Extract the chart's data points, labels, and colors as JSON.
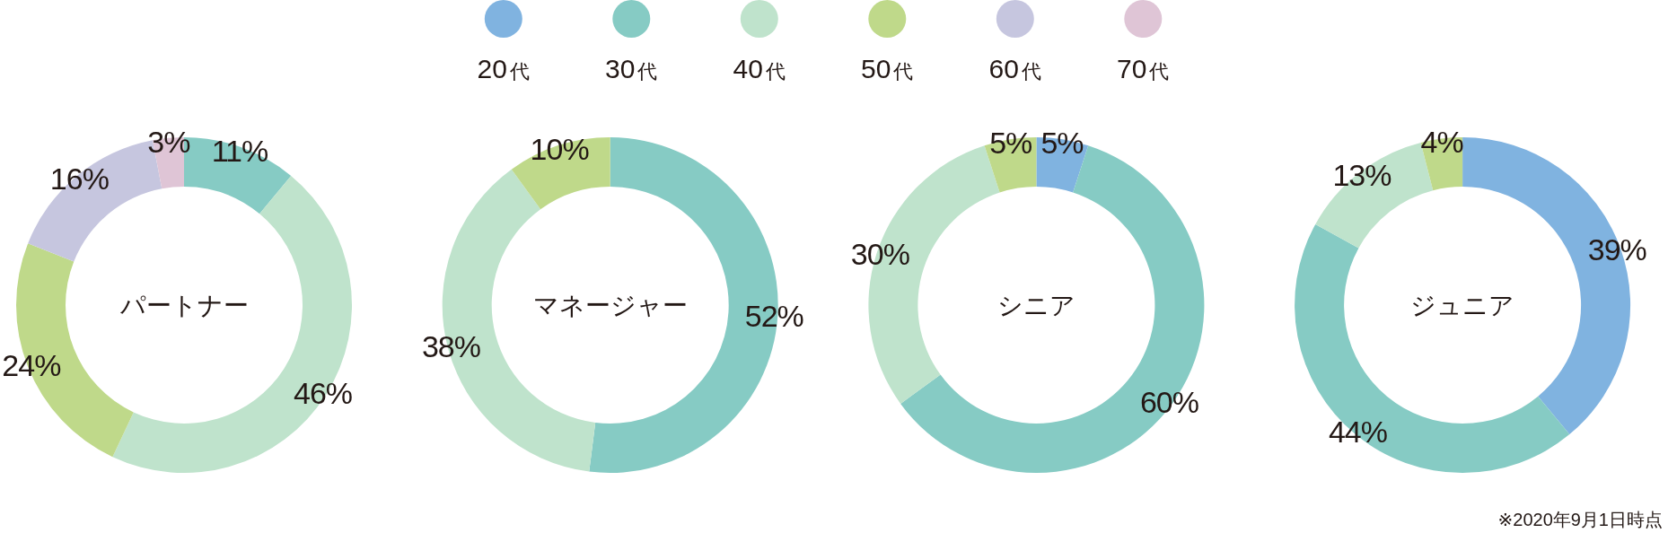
{
  "chart_data": [
    {
      "type": "donut",
      "title": "パートナー",
      "categories": [
        "20代",
        "30代",
        "40代",
        "50代",
        "60代",
        "70代"
      ],
      "values": [
        null,
        11,
        46,
        24,
        16,
        3
      ],
      "colors": [
        "#80b3e0",
        "#86cbc4",
        "#bfe3cc",
        "#bfd98a",
        "#c6c6df",
        "#dfc5d6"
      ],
      "value_labels": [
        null,
        "11%",
        "46%",
        "24%",
        "16%",
        "3%"
      ],
      "legend": "top"
    },
    {
      "type": "donut",
      "title": "マネージャー",
      "categories": [
        null,
        null,
        null,
        null,
        null,
        null
      ],
      "values": [
        null,
        52,
        38,
        10,
        null,
        null
      ],
      "colors": [
        null,
        "#86cbc4",
        "#bfe3cc",
        "#bfd98a",
        null,
        null
      ],
      "value_labels": [
        null,
        "52%",
        "38%",
        "10%",
        null,
        null
      ]
    },
    {
      "type": "donut",
      "title": "シニア",
      "categories": [
        null,
        null,
        null,
        null,
        null,
        null
      ],
      "values": [
        5,
        60,
        30,
        5,
        null,
        null
      ],
      "colors": [
        "#80b3e0",
        "#86cbc4",
        "#bfe3cc",
        "#bfd98a",
        null,
        null
      ],
      "value_labels": [
        "5%",
        "60%",
        "30%",
        "5%",
        null,
        null
      ]
    },
    {
      "type": "donut",
      "title": "ジュニア",
      "categories": [
        null,
        null,
        null,
        null,
        null,
        null
      ],
      "values": [
        39,
        44,
        13,
        4,
        null,
        null
      ],
      "colors": [
        "#80b3e0",
        "#86cbc4",
        "#bfe3cc",
        "#bfd98a",
        null,
        null
      ],
      "value_labels": [
        "39%",
        "44%",
        "13%",
        "4%",
        null,
        null
      ],
      "annotations": [
        "※2020年9月1日時点"
      ]
    }
  ]
}
